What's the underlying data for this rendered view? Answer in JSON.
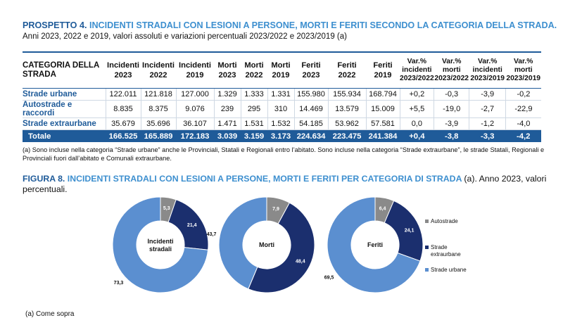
{
  "table_title": {
    "lead": "PROSPETTO 4.",
    "rest": "INCIDENTI STRADALI CON LESIONI A PERSONE, MORTI E FERITI SECONDO LA CATEGORIA DELLA STRADA."
  },
  "table_subtitle": "Anni 2023, 2022 e 2019, valori assoluti e variazioni percentuali 2023/2022 e 2023/2019 (a)",
  "table": {
    "header_first": "CATEGORIA DELLA STRADA",
    "columns": [
      {
        "top": "Incidenti",
        "bottom": "2023"
      },
      {
        "top": "Incidenti",
        "bottom": "2022"
      },
      {
        "top": "Incidenti",
        "bottom": "2019"
      },
      {
        "top": "Morti",
        "bottom": "2023"
      },
      {
        "top": "Morti",
        "bottom": "2022"
      },
      {
        "top": "Morti",
        "bottom": "2019"
      },
      {
        "top": "Feriti",
        "bottom": "2023"
      },
      {
        "top": "Feriti",
        "bottom": "2022"
      },
      {
        "top": "Feriti",
        "bottom": "2019"
      },
      {
        "top": "Var.% incidenti",
        "bottom": "2023/2022"
      },
      {
        "top": "Var.% morti",
        "bottom": "2023/2022"
      },
      {
        "top": "Var.% incidenti",
        "bottom": "2023/2019"
      },
      {
        "top": "Var.% morti",
        "bottom": "2023/2019"
      }
    ],
    "rows": [
      {
        "label": "Strade urbane",
        "values": [
          "122.011",
          "121.818",
          "127.000",
          "1.329",
          "1.333",
          "1.331",
          "155.980",
          "155.934",
          "168.794",
          "+0,2",
          "-0,3",
          "-3,9",
          "-0,2"
        ]
      },
      {
        "label": "Autostrade e raccordi",
        "values": [
          "8.835",
          "8.375",
          "9.076",
          "239",
          "295",
          "310",
          "14.469",
          "13.579",
          "15.009",
          "+5,5",
          "-19,0",
          "-2,7",
          "-22,9"
        ]
      },
      {
        "label": "Strade extraurbane",
        "values": [
          "35.679",
          "35.696",
          "36.107",
          "1.471",
          "1.531",
          "1.532",
          "54.185",
          "53.962",
          "57.581",
          "0,0",
          "-3,9",
          "-1,2",
          "-4,0"
        ]
      }
    ],
    "total": {
      "label": "Totale",
      "values": [
        "166.525",
        "165.889",
        "172.183",
        "3.039",
        "3.159",
        "3.173",
        "224.634",
        "223.475",
        "241.384",
        "+0,4",
        "-3,8",
        "-3,3",
        "-4,2"
      ]
    }
  },
  "table_note": {
    "marker": "(a)",
    "text": "Sono incluse nella categoria “Strade urbane” anche le Provinciali, Statali e Regionali entro l’abitato. Sono incluse nella categoria “Strade extraurbane”, le strade Statali, Regionali e Provinciali fuori dall’abitato e Comunali extraurbane."
  },
  "figure_title": {
    "lead": "FIGURA 8.",
    "rest": "INCIDENTI STRADALI CON LESIONI A PERSONE, MORTI E FERITI PER CATEGORIA DI STRADA",
    "tail": "(a). Anno 2023, valori percentuali."
  },
  "colors": {
    "autostrade": "#8a8a8a",
    "extraurbane": "#1b2f6e",
    "urbane": "#5b8fd0",
    "accent": "#1f5b99"
  },
  "chart_data": {
    "type": "pie",
    "variant": "donut",
    "legend_position": "right",
    "legend": [
      "Autostrade",
      "Strade extraurbane",
      "Strade urbane"
    ],
    "charts": [
      {
        "center_label": "Incidenti stradali",
        "values": [
          5.3,
          21.4,
          73.3
        ],
        "labels": [
          "5,3",
          "21,4",
          "73,3"
        ]
      },
      {
        "center_label": "Morti",
        "values": [
          7.9,
          48.4,
          43.7
        ],
        "labels": [
          "7,9",
          "48,4",
          "43,7"
        ]
      },
      {
        "center_label": "Feriti",
        "values": [
          6.4,
          24.1,
          69.5
        ],
        "labels": [
          "6,4",
          "24,1",
          "69,5"
        ]
      }
    ]
  },
  "footnote": "(a)    Come sopra"
}
